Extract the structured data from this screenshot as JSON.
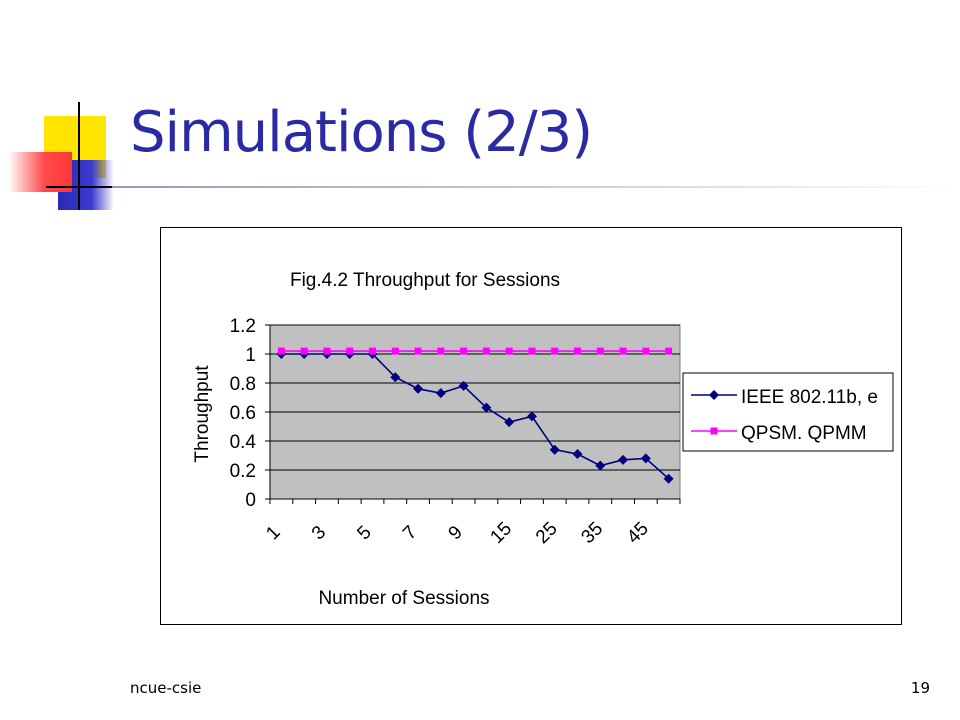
{
  "slide": {
    "title": "Simulations (2/3)",
    "footer_left": "ncue-csie",
    "page_number": "19"
  },
  "colors": {
    "title": "#2a2aa4",
    "plot_bg": "#c0c0c0",
    "series_ieee": "#000080",
    "series_qpsm": "#ff00ff"
  },
  "chart_data": {
    "type": "line",
    "title": "Fig.4.2 Throughput for Sessions",
    "xlabel": "Number of Sessions",
    "ylabel": "Throughput",
    "ylim": [
      0,
      1.2
    ],
    "yticks": [
      "0",
      "0.2",
      "0.4",
      "0.6",
      "0.8",
      "1",
      "1.2"
    ],
    "xtick_labels": [
      "1",
      "3",
      "5",
      "7",
      "9",
      "15",
      "25",
      "35",
      "45"
    ],
    "legend_position": "right",
    "grid": true,
    "series": [
      {
        "name": "IEEE 802.11b, e",
        "marker": "diamond",
        "values": [
          1.0,
          1.0,
          1.0,
          1.0,
          1.0,
          0.84,
          0.76,
          0.73,
          0.78,
          0.63,
          0.53,
          0.57,
          0.34,
          0.31,
          0.23,
          0.27,
          0.28,
          0.14
        ]
      },
      {
        "name": "QPSM. QPMM",
        "marker": "square",
        "values": [
          1.02,
          1.02,
          1.02,
          1.02,
          1.02,
          1.02,
          1.02,
          1.02,
          1.02,
          1.02,
          1.02,
          1.02,
          1.02,
          1.02,
          1.02,
          1.02,
          1.02,
          1.02
        ]
      }
    ]
  }
}
